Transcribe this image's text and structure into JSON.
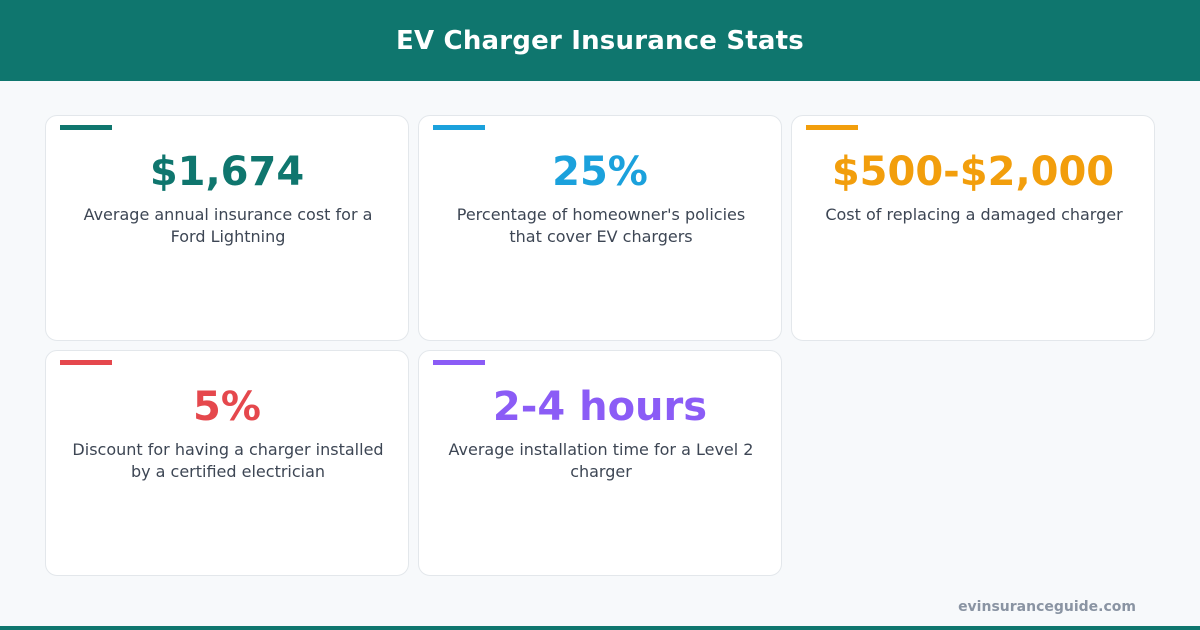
{
  "header": {
    "title": "EV Charger Insurance Stats"
  },
  "stats": [
    {
      "value": "$1,674",
      "description": "Average annual insurance cost for a Ford Lightning",
      "color": "#0f766e"
    },
    {
      "value": "25%",
      "description": "Percentage of homeowner's policies that cover EV chargers",
      "color": "#1ba1dc"
    },
    {
      "value": "$500-$2,000",
      "description": "Cost of replacing a damaged charger",
      "color": "#f29e0c"
    },
    {
      "value": "5%",
      "description": "Discount for having a charger installed by a certified electrician",
      "color": "#e5484d"
    },
    {
      "value": "2-4 hours",
      "description": "Average installation time for a Level 2 charger",
      "color": "#8b5cf6"
    }
  ],
  "footer": {
    "site": "evinsuranceguide.com"
  },
  "colors": {
    "brand": "#0f766e",
    "background": "#f7f9fb",
    "text": "#3d4654"
  }
}
